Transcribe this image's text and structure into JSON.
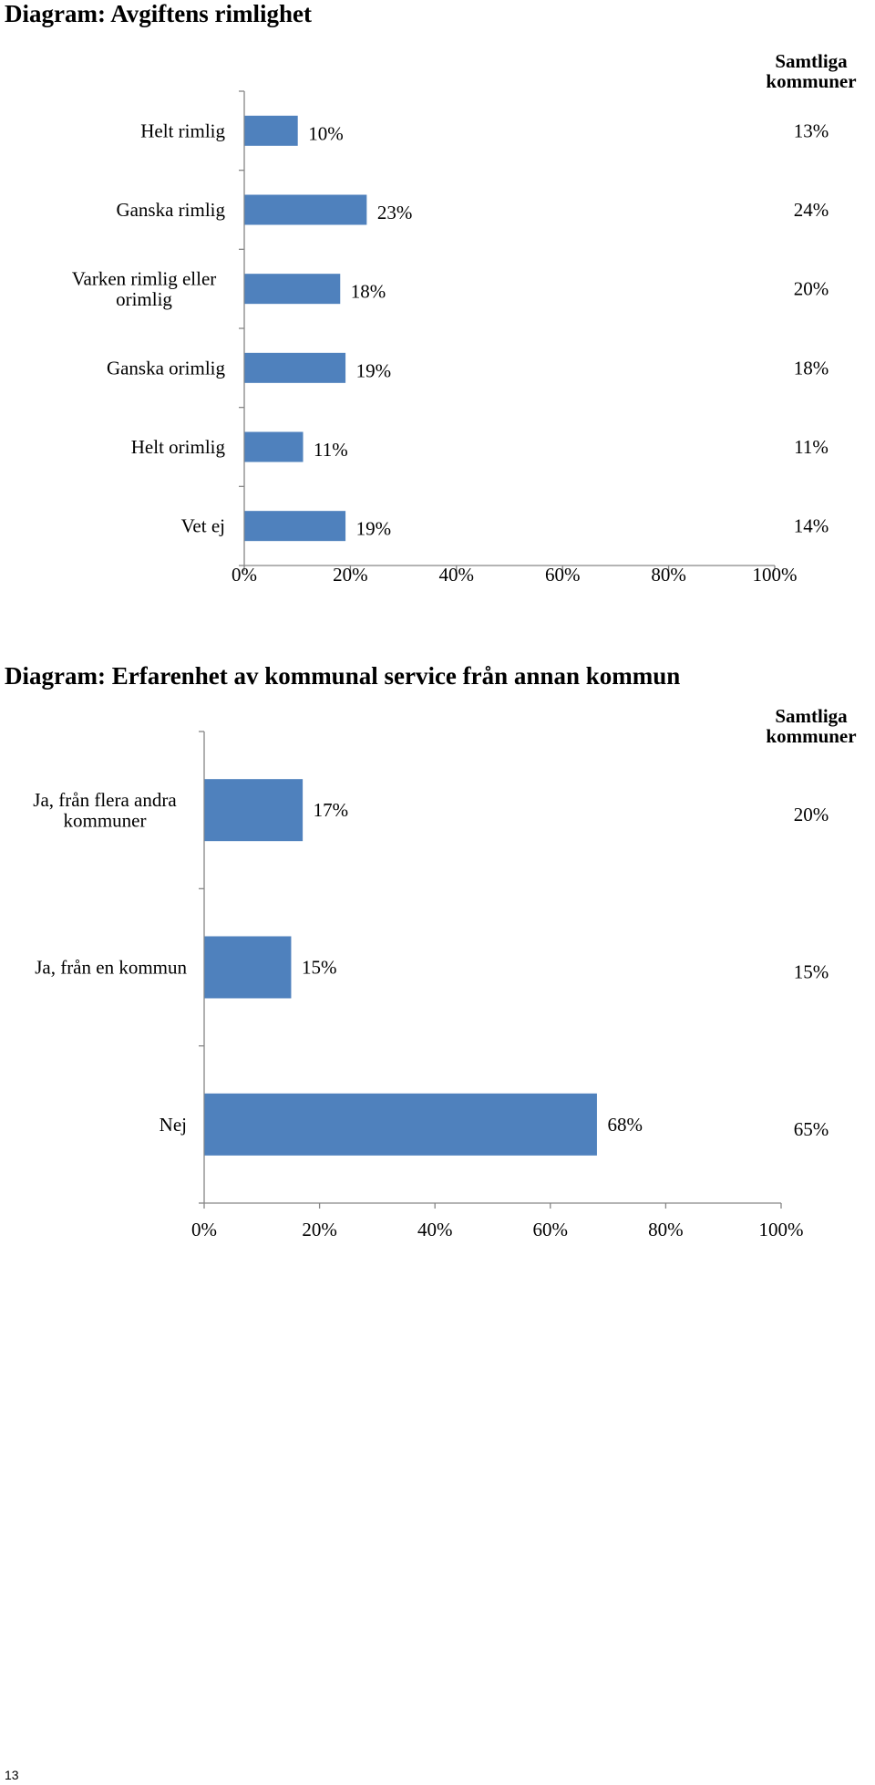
{
  "chart_data": [
    {
      "type": "bar",
      "orientation": "horizontal",
      "title": "Diagram: Avgiftens rimlighet",
      "categories": [
        "Helt rimlig",
        "Ganska rimlig",
        "Varken rimlig eller orimlig",
        "Ganska orimlig",
        "Helt orimlig",
        "Vet ej"
      ],
      "category_lines": [
        [
          "Helt rimlig"
        ],
        [
          "Ganska rimlig"
        ],
        [
          "Varken rimlig eller",
          "orimlig"
        ],
        [
          "Ganska orimlig"
        ],
        [
          "Helt orimlig"
        ],
        [
          "Vet ej"
        ]
      ],
      "values": [
        10,
        23,
        18,
        19,
        11,
        19
      ],
      "value_labels": [
        "10%",
        "23%",
        "18%",
        "19%",
        "11%",
        "19%"
      ],
      "comparison_header_lines": [
        "Samtliga",
        "kommuner"
      ],
      "comparison_values": [
        13,
        24,
        20,
        18,
        11,
        14
      ],
      "comparison_labels": [
        "13%",
        "24%",
        "20%",
        "18%",
        "11%",
        "14%"
      ],
      "xlim": [
        0,
        100
      ],
      "xtick_labels": [
        "0%",
        "20%",
        "40%",
        "60%",
        "80%",
        "100%"
      ],
      "bar_color": "#4F81BD",
      "grid": false
    },
    {
      "type": "bar",
      "orientation": "horizontal",
      "title": "Diagram: Erfarenhet av kommunal service från annan kommun",
      "categories": [
        "Ja, från flera andra kommuner",
        "Ja, från en kommun",
        "Nej"
      ],
      "category_lines": [
        [
          "Ja, från flera andra",
          "kommuner"
        ],
        [
          "Ja, från en kommun"
        ],
        [
          "Nej"
        ]
      ],
      "values": [
        17,
        15,
        68
      ],
      "value_labels": [
        "17%",
        "15%",
        "68%"
      ],
      "comparison_header_lines": [
        "Samtliga",
        "kommuner"
      ],
      "comparison_values": [
        20,
        15,
        65
      ],
      "comparison_labels": [
        "20%",
        "15%",
        "65%"
      ],
      "xlim": [
        0,
        100
      ],
      "xtick_labels": [
        "0%",
        "20%",
        "40%",
        "60%",
        "80%",
        "100%"
      ],
      "bar_color": "#4F81BD",
      "grid": false
    }
  ],
  "page": {
    "number": "13"
  }
}
